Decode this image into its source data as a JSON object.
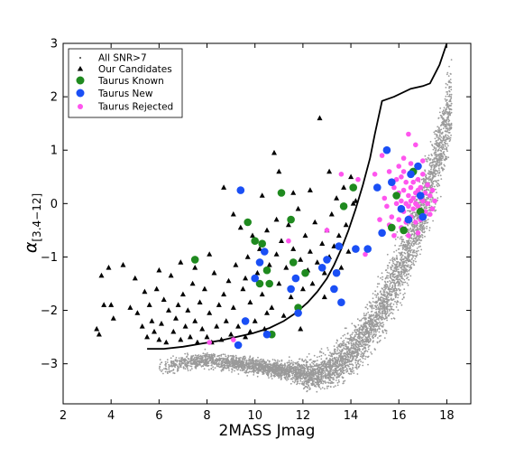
{
  "chart_data": {
    "type": "scatter",
    "xlabel": "2MASS Jmag",
    "ylabel_main": "α",
    "ylabel_sub": "[3.4−12]",
    "xlim": [
      2,
      19
    ],
    "ylim": [
      -3.75,
      3
    ],
    "xticks": [
      "2",
      "4",
      "6",
      "8",
      "10",
      "12",
      "14",
      "16",
      "18"
    ],
    "yticks": [
      "3",
      "2",
      "1",
      "0",
      "−1",
      "−2",
      "−3"
    ],
    "grid": false,
    "legend_position": "top-left",
    "series": [
      {
        "name": "All SNR>7",
        "marker": "dot",
        "color": "#9a9a9a"
      },
      {
        "name": "Our Candidates",
        "marker": "triangle",
        "color": "#000000"
      },
      {
        "name": "Taurus Known",
        "marker": "circle",
        "color": "#1f8a1f"
      },
      {
        "name": "Taurus New",
        "marker": "circle",
        "color": "#1a4ff5"
      },
      {
        "name": "Taurus Rejected",
        "marker": "circle",
        "color": "#ff55ee"
      }
    ],
    "cut_line": {
      "x": [
        5.5,
        6.2,
        7.0,
        7.8,
        8.5,
        9.2,
        9.9,
        10.6,
        11.2,
        11.7,
        12.2,
        12.6,
        13.0,
        13.3,
        13.6,
        13.9,
        14.2,
        14.5,
        14.8,
        15.0,
        15.3,
        15.8,
        16.5,
        17.0,
        17.3,
        17.7,
        18.0
      ],
      "y": [
        -2.72,
        -2.72,
        -2.68,
        -2.62,
        -2.57,
        -2.5,
        -2.43,
        -2.33,
        -2.2,
        -2.05,
        -1.85,
        -1.65,
        -1.4,
        -1.15,
        -0.85,
        -0.5,
        -0.1,
        0.35,
        0.85,
        1.3,
        1.92,
        2.0,
        2.15,
        2.2,
        2.25,
        2.6,
        3.0
      ]
    },
    "our_candidates": [
      [
        3.4,
        -2.35
      ],
      [
        3.5,
        -2.45
      ],
      [
        3.6,
        -1.35
      ],
      [
        3.7,
        -1.9
      ],
      [
        3.9,
        -1.2
      ],
      [
        4.0,
        -1.9
      ],
      [
        4.1,
        -2.15
      ],
      [
        4.5,
        -1.15
      ],
      [
        4.8,
        -1.95
      ],
      [
        5.0,
        -1.4
      ],
      [
        5.1,
        -2.05
      ],
      [
        5.3,
        -2.3
      ],
      [
        5.4,
        -1.65
      ],
      [
        5.5,
        -2.5
      ],
      [
        5.6,
        -1.9
      ],
      [
        5.7,
        -2.2
      ],
      [
        5.8,
        -2.4
      ],
      [
        5.9,
        -1.6
      ],
      [
        6.0,
        -2.55
      ],
      [
        6.1,
        -2.25
      ],
      [
        6.2,
        -1.8
      ],
      [
        6.3,
        -2.6
      ],
      [
        6.4,
        -2.0
      ],
      [
        6.5,
        -1.35
      ],
      [
        6.6,
        -2.4
      ],
      [
        6.7,
        -2.15
      ],
      [
        6.8,
        -1.9
      ],
      [
        6.9,
        -2.55
      ],
      [
        7.0,
        -1.7
      ],
      [
        7.1,
        -2.3
      ],
      [
        7.2,
        -2.0
      ],
      [
        7.3,
        -2.5
      ],
      [
        7.4,
        -1.5
      ],
      [
        7.5,
        -2.2
      ],
      [
        7.6,
        -2.6
      ],
      [
        7.7,
        -1.85
      ],
      [
        7.8,
        -2.35
      ],
      [
        7.9,
        -1.6
      ],
      [
        8.0,
        -2.5
      ],
      [
        8.1,
        -2.05
      ],
      [
        8.2,
        -2.6
      ],
      [
        8.3,
        -1.3
      ],
      [
        8.4,
        -2.3
      ],
      [
        8.5,
        -1.9
      ],
      [
        8.6,
        -2.55
      ],
      [
        8.7,
        -1.7
      ],
      [
        8.8,
        -2.2
      ],
      [
        8.9,
        -1.45
      ],
      [
        9.0,
        -2.45
      ],
      [
        9.1,
        -1.95
      ],
      [
        9.2,
        -1.15
      ],
      [
        9.3,
        -2.3
      ],
      [
        9.4,
        -0.45
      ],
      [
        9.5,
        -1.6
      ],
      [
        9.6,
        -2.5
      ],
      [
        9.7,
        -1.0
      ],
      [
        9.8,
        -1.85
      ],
      [
        9.9,
        -0.6
      ],
      [
        10.0,
        -2.2
      ],
      [
        10.1,
        -1.3
      ],
      [
        10.2,
        -0.85
      ],
      [
        10.3,
        -1.7
      ],
      [
        10.4,
        -2.35
      ],
      [
        10.5,
        -0.5
      ],
      [
        10.6,
        -1.15
      ],
      [
        10.7,
        -1.95
      ],
      [
        10.8,
        0.95
      ],
      [
        10.9,
        -0.95
      ],
      [
        11.0,
        -1.5
      ],
      [
        11.1,
        -0.7
      ],
      [
        11.2,
        -2.1
      ],
      [
        11.3,
        -1.2
      ],
      [
        11.4,
        -0.4
      ],
      [
        11.5,
        -1.75
      ],
      [
        11.6,
        -0.85
      ],
      [
        11.7,
        -1.4
      ],
      [
        11.8,
        -0.1
      ],
      [
        11.9,
        -1.05
      ],
      [
        12.0,
        -1.6
      ],
      [
        12.1,
        -0.6
      ],
      [
        12.2,
        -1.25
      ],
      [
        12.3,
        -0.9
      ],
      [
        12.4,
        -1.5
      ],
      [
        12.5,
        -0.35
      ],
      [
        12.6,
        -1.1
      ],
      [
        12.7,
        1.6
      ],
      [
        12.8,
        -0.75
      ],
      [
        12.9,
        -1.3
      ],
      [
        13.0,
        -0.5
      ],
      [
        13.1,
        -1.0
      ],
      [
        13.2,
        -0.2
      ],
      [
        13.3,
        -0.8
      ],
      [
        13.4,
        0.1
      ],
      [
        13.5,
        -0.6
      ],
      [
        13.6,
        -1.2
      ],
      [
        13.7,
        0.3
      ],
      [
        13.8,
        -0.4
      ],
      [
        13.9,
        -0.9
      ],
      [
        14.0,
        0.5
      ],
      [
        14.2,
        0.05
      ],
      [
        9.1,
        -0.2
      ],
      [
        9.6,
        -1.4
      ],
      [
        10.3,
        0.15
      ],
      [
        10.9,
        -0.3
      ],
      [
        11.6,
        0.2
      ],
      [
        12.3,
        0.25
      ],
      [
        8.1,
        -0.95
      ],
      [
        8.7,
        0.3
      ],
      [
        7.5,
        -1.2
      ],
      [
        11.0,
        0.6
      ],
      [
        6.0,
        -1.25
      ],
      [
        6.9,
        -1.1
      ],
      [
        12.9,
        -1.75
      ],
      [
        13.1,
        0.6
      ],
      [
        14.1,
        0.0
      ],
      [
        10.5,
        -2.05
      ],
      [
        9.8,
        -2.4
      ],
      [
        11.9,
        -2.35
      ]
    ],
    "taurus_known": [
      [
        7.5,
        -1.05
      ],
      [
        9.7,
        -0.35
      ],
      [
        10.0,
        -0.7
      ],
      [
        10.2,
        -1.5
      ],
      [
        10.3,
        -0.75
      ],
      [
        10.5,
        -1.25
      ],
      [
        10.6,
        -1.5
      ],
      [
        10.7,
        -2.45
      ],
      [
        11.1,
        0.2
      ],
      [
        11.5,
        -0.3
      ],
      [
        11.6,
        -1.1
      ],
      [
        11.8,
        -1.95
      ],
      [
        12.1,
        -1.3
      ],
      [
        13.7,
        -0.05
      ],
      [
        14.1,
        0.3
      ],
      [
        15.7,
        -0.45
      ],
      [
        15.9,
        0.15
      ],
      [
        16.2,
        -0.5
      ],
      [
        16.6,
        0.6
      ],
      [
        16.9,
        -0.15
      ]
    ],
    "taurus_new": [
      [
        9.3,
        -2.65
      ],
      [
        9.4,
        0.25
      ],
      [
        9.6,
        -2.2
      ],
      [
        10.0,
        -1.4
      ],
      [
        10.2,
        -1.1
      ],
      [
        10.4,
        -0.9
      ],
      [
        10.5,
        -2.45
      ],
      [
        11.5,
        -1.6
      ],
      [
        11.7,
        -1.4
      ],
      [
        11.8,
        -2.05
      ],
      [
        12.8,
        -1.2
      ],
      [
        13.0,
        -1.05
      ],
      [
        13.3,
        -1.6
      ],
      [
        13.4,
        -1.3
      ],
      [
        13.5,
        -0.8
      ],
      [
        13.6,
        -1.85
      ],
      [
        14.2,
        -0.85
      ],
      [
        14.7,
        -0.85
      ],
      [
        15.1,
        0.3
      ],
      [
        15.3,
        -0.55
      ],
      [
        15.5,
        1.0
      ],
      [
        15.7,
        0.4
      ],
      [
        16.1,
        -0.1
      ],
      [
        16.4,
        -0.3
      ],
      [
        16.5,
        0.55
      ],
      [
        16.8,
        0.7
      ],
      [
        16.9,
        0.15
      ],
      [
        17.0,
        -0.25
      ]
    ],
    "taurus_rejected": [
      [
        8.1,
        -2.6
      ],
      [
        9.1,
        -2.55
      ],
      [
        11.4,
        -0.7
      ],
      [
        13.0,
        -0.5
      ],
      [
        13.6,
        0.55
      ],
      [
        14.3,
        0.45
      ],
      [
        14.6,
        -0.95
      ],
      [
        15.0,
        0.55
      ],
      [
        15.2,
        -0.3
      ],
      [
        15.4,
        0.1
      ],
      [
        15.5,
        -0.05
      ],
      [
        15.6,
        0.6
      ],
      [
        15.7,
        -0.25
      ],
      [
        15.8,
        0.3
      ],
      [
        15.8,
        -0.6
      ],
      [
        15.9,
        0.45
      ],
      [
        15.9,
        0.0
      ],
      [
        16.0,
        0.7
      ],
      [
        16.0,
        -0.3
      ],
      [
        16.0,
        0.2
      ],
      [
        16.1,
        0.05
      ],
      [
        16.1,
        -0.45
      ],
      [
        16.1,
        0.5
      ],
      [
        16.2,
        0.25
      ],
      [
        16.2,
        -0.15
      ],
      [
        16.2,
        0.85
      ],
      [
        16.3,
        0.0
      ],
      [
        16.3,
        -0.35
      ],
      [
        16.3,
        0.4
      ],
      [
        16.4,
        0.15
      ],
      [
        16.4,
        -0.05
      ],
      [
        16.4,
        1.3
      ],
      [
        16.4,
        -0.6
      ],
      [
        16.5,
        0.3
      ],
      [
        16.5,
        0.05
      ],
      [
        16.5,
        -0.25
      ],
      [
        16.5,
        0.75
      ],
      [
        16.6,
        0.1
      ],
      [
        16.6,
        -0.1
      ],
      [
        16.6,
        0.4
      ],
      [
        16.7,
        0.2
      ],
      [
        16.7,
        -0.35
      ],
      [
        16.7,
        0.0
      ],
      [
        16.7,
        1.1
      ],
      [
        16.8,
        0.25
      ],
      [
        16.8,
        -0.05
      ],
      [
        16.8,
        0.45
      ],
      [
        16.9,
        0.1
      ],
      [
        16.9,
        -0.3
      ],
      [
        16.9,
        0.3
      ],
      [
        17.0,
        0.05
      ],
      [
        17.0,
        0.55
      ],
      [
        17.1,
        0.2
      ],
      [
        17.1,
        -0.15
      ],
      [
        17.2,
        0.35
      ],
      [
        17.2,
        0.0
      ],
      [
        17.3,
        0.15
      ],
      [
        17.3,
        -0.2
      ],
      [
        17.4,
        0.25
      ],
      [
        17.5,
        0.05
      ],
      [
        15.3,
        0.9
      ],
      [
        15.6,
        -0.4
      ],
      [
        16.2,
        0.6
      ],
      [
        16.8,
        -0.55
      ],
      [
        17.0,
        0.8
      ],
      [
        17.4,
        -0.1
      ]
    ]
  }
}
